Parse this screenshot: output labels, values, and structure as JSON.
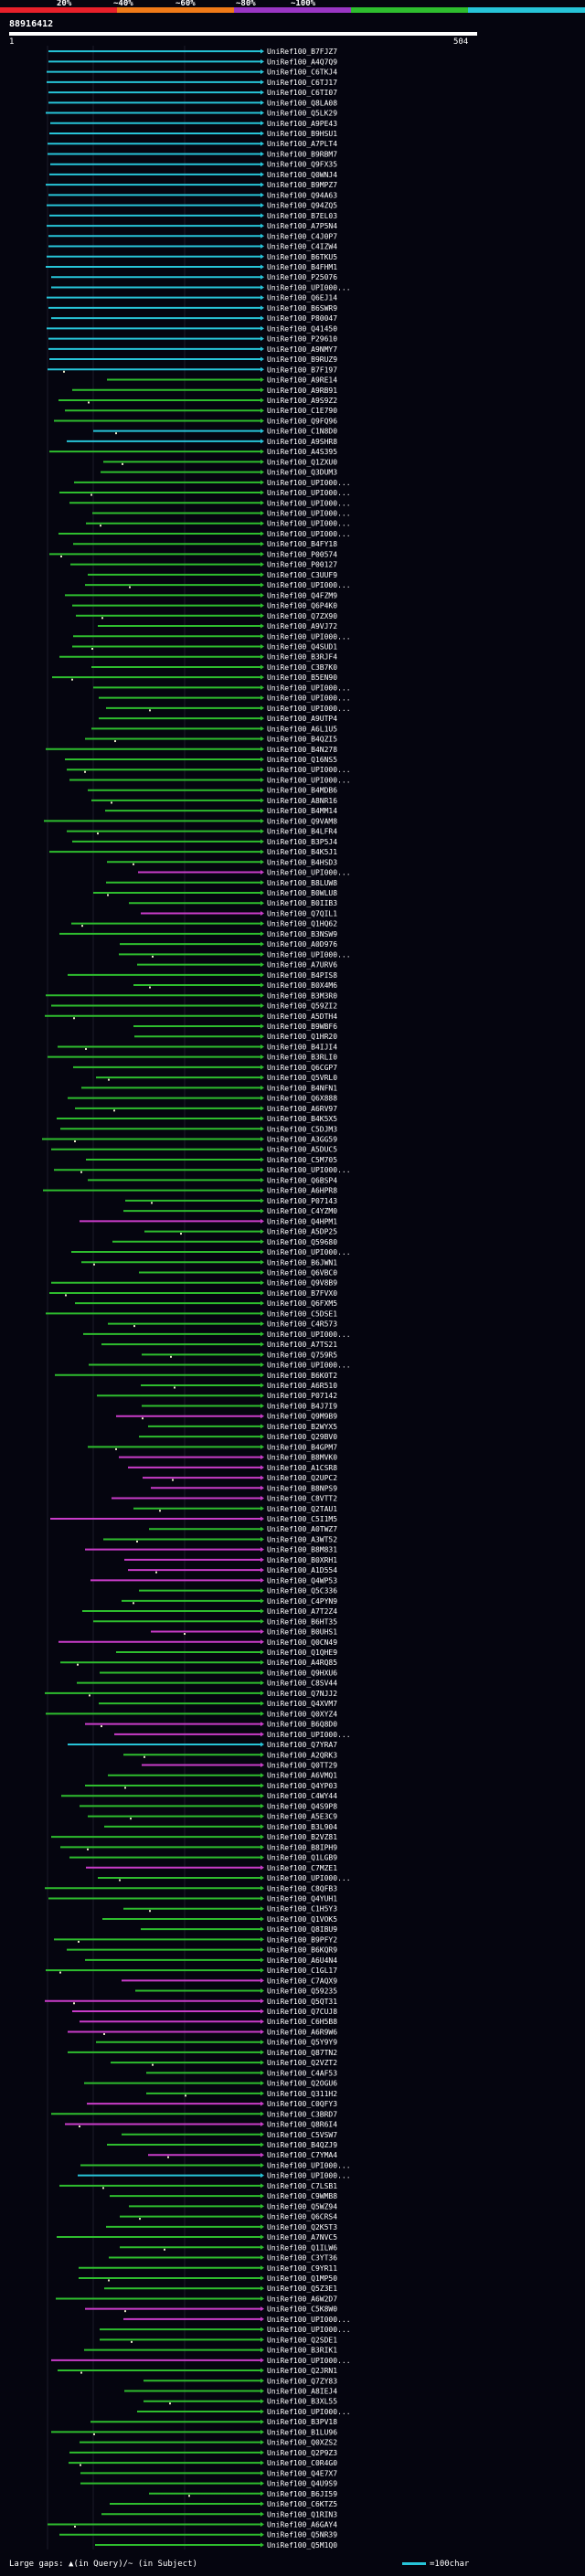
{
  "scale_labels": [
    "20%",
    "~40%",
    "~60%",
    "~80%",
    "~100%"
  ],
  "query": {
    "id": "88916412",
    "start": "1",
    "end": "504"
  },
  "colors": {
    "cyan": "#27c4d8",
    "green": "#2ebd2e",
    "magenta": "#c93cc9",
    "gap": "#e8e8c8",
    "scale": [
      "#e8202a",
      "#f07a18",
      "#9a36c4",
      "#2ebd2e",
      "#27c4d8"
    ]
  },
  "hits": [
    {
      "label": "UniRef100_B7FJZ7",
      "c": "cyan"
    },
    {
      "label": "UniRef100_A4Q7Q9",
      "c": "cyan"
    },
    {
      "label": "UniRef100_C6TKJ4",
      "c": "cyan"
    },
    {
      "label": "UniRef100_C6TJ17",
      "c": "cyan"
    },
    {
      "label": "UniRef100_C6TI07",
      "c": "cyan"
    },
    {
      "label": "UniRef100_Q8LA08",
      "c": "cyan"
    },
    {
      "label": "UniRef100_Q5LK29",
      "c": "cyan"
    },
    {
      "label": "UniRef100_A9PE43",
      "c": "cyan"
    },
    {
      "label": "UniRef100_B9HSU1",
      "c": "cyan"
    },
    {
      "label": "UniRef100_A7PLT4",
      "c": "cyan"
    },
    {
      "label": "UniRef100_B9RBM7",
      "c": "cyan"
    },
    {
      "label": "UniRef100_Q9FX35",
      "c": "cyan"
    },
    {
      "label": "UniRef100_Q0WNJ4",
      "c": "cyan"
    },
    {
      "label": "UniRef100_B9MPZ7",
      "c": "cyan"
    },
    {
      "label": "UniRef100_Q94A63",
      "c": "cyan"
    },
    {
      "label": "UniRef100_Q94ZQ5",
      "c": "cyan"
    },
    {
      "label": "UniRef100_B7EL03",
      "c": "cyan"
    },
    {
      "label": "UniRef100_A7P5N4",
      "c": "cyan"
    },
    {
      "label": "UniRef100_C4J0P7",
      "c": "cyan"
    },
    {
      "label": "UniRef100_C4IZW4",
      "c": "cyan"
    },
    {
      "label": "UniRef100_B6TKU5",
      "c": "cyan"
    },
    {
      "label": "UniRef100_B4FHM1",
      "c": "cyan"
    },
    {
      "label": "UniRef100_P25076",
      "c": "cyan"
    },
    {
      "label": "UniRef100_UPI000...",
      "c": "cyan"
    },
    {
      "label": "UniRef100_Q6EJ14",
      "c": "cyan"
    },
    {
      "label": "UniRef100_B6SWR9",
      "c": "cyan"
    },
    {
      "label": "UniRef100_P80047",
      "c": "cyan"
    },
    {
      "label": "UniRef100_Q41450",
      "c": "cyan"
    },
    {
      "label": "UniRef100_P29610",
      "c": "cyan"
    },
    {
      "label": "UniRef100_A9NMY7",
      "c": "cyan"
    },
    {
      "label": "UniRef100_B9RUZ9",
      "c": "cyan"
    },
    {
      "label": "UniRef100_B7F197",
      "c": "cyan"
    },
    {
      "label": "UniRef100_A9RE14",
      "c": "green"
    },
    {
      "label": "UniRef100_A9RB91",
      "c": "green"
    },
    {
      "label": "UniRef100_A9S9Z2",
      "c": "green"
    },
    {
      "label": "UniRef100_C1E790",
      "c": "green"
    },
    {
      "label": "UniRef100_Q9FQ96",
      "c": "green"
    },
    {
      "label": "UniRef100_C1N8D0",
      "c": "cyan"
    },
    {
      "label": "UniRef100_A9SHR8",
      "c": "cyan"
    },
    {
      "label": "UniRef100_A4S395",
      "c": "green"
    },
    {
      "label": "UniRef100_Q1ZXU0",
      "c": "green"
    },
    {
      "label": "UniRef100_Q3DUM3",
      "c": "green"
    },
    {
      "label": "UniRef100_UPI000...",
      "c": "green"
    },
    {
      "label": "UniRef100_UPI000...",
      "c": "green"
    },
    {
      "label": "UniRef100_UPI000...",
      "c": "green"
    },
    {
      "label": "UniRef100_UPI000...",
      "c": "green"
    },
    {
      "label": "UniRef100_UPI000...",
      "c": "green"
    },
    {
      "label": "UniRef100_UPI000...",
      "c": "green"
    },
    {
      "label": "UniRef100_B4FY18",
      "c": "green"
    },
    {
      "label": "UniRef100_P00574",
      "c": "green"
    },
    {
      "label": "UniRef100_P00127",
      "c": "green"
    },
    {
      "label": "UniRef100_C3UUF9",
      "c": "green"
    },
    {
      "label": "UniRef100_UPI000...",
      "c": "green"
    },
    {
      "label": "UniRef100_Q4FZM9",
      "c": "green"
    },
    {
      "label": "UniRef100_Q6P4K0",
      "c": "green"
    },
    {
      "label": "UniRef100_Q7ZX90",
      "c": "green"
    },
    {
      "label": "UniRef100_A9VJ72",
      "c": "green"
    },
    {
      "label": "UniRef100_UPI000...",
      "c": "green"
    },
    {
      "label": "UniRef100_Q4SUD1",
      "c": "green"
    },
    {
      "label": "UniRef100_B3RJF4",
      "c": "green"
    },
    {
      "label": "UniRef100_C3B7K0",
      "c": "green"
    },
    {
      "label": "UniRef100_B5EN90",
      "c": "green"
    },
    {
      "label": "UniRef100_UPI000...",
      "c": "green"
    },
    {
      "label": "UniRef100_UPI000...",
      "c": "green"
    },
    {
      "label": "UniRef100_UPI000...",
      "c": "green"
    },
    {
      "label": "UniRef100_A9UTP4",
      "c": "green"
    },
    {
      "label": "UniRef100_A6L1U5",
      "c": "green"
    },
    {
      "label": "UniRef100_B4QZI5",
      "c": "green"
    },
    {
      "label": "UniRef100_B4N278",
      "c": "green"
    },
    {
      "label": "UniRef100_Q16NS5",
      "c": "green"
    },
    {
      "label": "UniRef100_UPI000...",
      "c": "green"
    },
    {
      "label": "UniRef100_UPI000...",
      "c": "green"
    },
    {
      "label": "UniRef100_B4MDB6",
      "c": "green"
    },
    {
      "label": "UniRef100_A8NR16",
      "c": "green"
    },
    {
      "label": "UniRef100_B4MM14",
      "c": "green"
    },
    {
      "label": "UniRef100_Q9VAM8",
      "c": "green"
    },
    {
      "label": "UniRef100_B4LFR4",
      "c": "green"
    },
    {
      "label": "UniRef100_B3P5J4",
      "c": "green"
    },
    {
      "label": "UniRef100_B4K5J1",
      "c": "green"
    },
    {
      "label": "UniRef100_B4HSD3",
      "c": "green"
    },
    {
      "label": "UniRef100_UPI000...",
      "c": "magenta"
    },
    {
      "label": "UniRef100_B8LUW8",
      "c": "green"
    },
    {
      "label": "UniRef100_B0WLU8",
      "c": "green"
    },
    {
      "label": "UniRef100_B0IIB3",
      "c": "green"
    },
    {
      "label": "UniRef100_Q7QIL1",
      "c": "magenta"
    },
    {
      "label": "UniRef100_Q1HQ62",
      "c": "green"
    },
    {
      "label": "UniRef100_B3NSW9",
      "c": "green"
    },
    {
      "label": "UniRef100_A0D976",
      "c": "green"
    },
    {
      "label": "UniRef100_UPI000...",
      "c": "green"
    },
    {
      "label": "UniRef100_A7URV6",
      "c": "green"
    },
    {
      "label": "UniRef100_B4PIS8",
      "c": "green"
    },
    {
      "label": "UniRef100_B0X4M6",
      "c": "green"
    },
    {
      "label": "UniRef100_B3M3R0",
      "c": "green"
    },
    {
      "label": "UniRef100_Q59ZI2",
      "c": "green"
    },
    {
      "label": "UniRef100_A5DTH4",
      "c": "green"
    },
    {
      "label": "UniRef100_B9WBF6",
      "c": "green"
    },
    {
      "label": "UniRef100_Q1HR20",
      "c": "green"
    },
    {
      "label": "UniRef100_B4IJI4",
      "c": "green"
    },
    {
      "label": "UniRef100_B3RLI0",
      "c": "green"
    },
    {
      "label": "UniRef100_Q6CGP7",
      "c": "green"
    },
    {
      "label": "UniRef100_Q5VRL0",
      "c": "green"
    },
    {
      "label": "UniRef100_B4NFN1",
      "c": "green"
    },
    {
      "label": "UniRef100_Q6X888",
      "c": "green"
    },
    {
      "label": "UniRef100_A6RV97",
      "c": "green"
    },
    {
      "label": "UniRef100_B4K5X5",
      "c": "green"
    },
    {
      "label": "UniRef100_C5DJM3",
      "c": "green"
    },
    {
      "label": "UniRef100_A3GG59",
      "c": "green"
    },
    {
      "label": "UniRef100_A5DUC5",
      "c": "green"
    },
    {
      "label": "UniRef100_C5M705",
      "c": "green"
    },
    {
      "label": "UniRef100_UPI000...",
      "c": "green"
    },
    {
      "label": "UniRef100_Q6BSP4",
      "c": "green"
    },
    {
      "label": "UniRef100_A6HPR8",
      "c": "green"
    },
    {
      "label": "UniRef100_P07143",
      "c": "green"
    },
    {
      "label": "UniRef100_C4YZM0",
      "c": "green"
    },
    {
      "label": "UniRef100_Q4HPM1",
      "c": "magenta"
    },
    {
      "label": "UniRef100_A5DP25",
      "c": "green"
    },
    {
      "label": "UniRef100_Q59680",
      "c": "green"
    },
    {
      "label": "UniRef100_UPI000...",
      "c": "green"
    },
    {
      "label": "UniRef100_B6JWN1",
      "c": "green"
    },
    {
      "label": "UniRef100_Q6VBC0",
      "c": "green"
    },
    {
      "label": "UniRef100_Q9V8B9",
      "c": "green"
    },
    {
      "label": "UniRef100_B7FVX0",
      "c": "green"
    },
    {
      "label": "UniRef100_Q6FXM5",
      "c": "green"
    },
    {
      "label": "UniRef100_C5DSE1",
      "c": "green"
    },
    {
      "label": "UniRef100_C4R573",
      "c": "green"
    },
    {
      "label": "UniRef100_UPI000...",
      "c": "green"
    },
    {
      "label": "UniRef100_A7TS21",
      "c": "green"
    },
    {
      "label": "UniRef100_Q759R5",
      "c": "green"
    },
    {
      "label": "UniRef100_UPI000...",
      "c": "green"
    },
    {
      "label": "UniRef100_B6K0T2",
      "c": "green"
    },
    {
      "label": "UniRef100_A6R510",
      "c": "green"
    },
    {
      "label": "UniRef100_P07142",
      "c": "green"
    },
    {
      "label": "UniRef100_B4J7I9",
      "c": "green"
    },
    {
      "label": "UniRef100_Q9M9B9",
      "c": "magenta"
    },
    {
      "label": "UniRef100_B2WYX5",
      "c": "green"
    },
    {
      "label": "UniRef100_Q29BV0",
      "c": "green"
    },
    {
      "label": "UniRef100_B4GPM7",
      "c": "green"
    },
    {
      "label": "UniRef100_B8MVK0",
      "c": "magenta"
    },
    {
      "label": "UniRef100_A1CSR8",
      "c": "magenta"
    },
    {
      "label": "UniRef100_Q2UPC2",
      "c": "magenta"
    },
    {
      "label": "UniRef100_B8NPS9",
      "c": "magenta"
    },
    {
      "label": "UniRef100_C8VTT2",
      "c": "magenta"
    },
    {
      "label": "UniRef100_Q2TAU1",
      "c": "green"
    },
    {
      "label": "UniRef100_C5I1M5",
      "c": "magenta"
    },
    {
      "label": "UniRef100_A0TWZ7",
      "c": "green"
    },
    {
      "label": "UniRef100_A3WT52",
      "c": "green"
    },
    {
      "label": "UniRef100_B8M831",
      "c": "magenta"
    },
    {
      "label": "UniRef100_B0XRH1",
      "c": "magenta"
    },
    {
      "label": "UniRef100_A1D554",
      "c": "magenta"
    },
    {
      "label": "UniRef100_Q4WP53",
      "c": "magenta"
    },
    {
      "label": "UniRef100_Q5C336",
      "c": "green"
    },
    {
      "label": "UniRef100_C4PYN9",
      "c": "green"
    },
    {
      "label": "UniRef100_A7T2Z4",
      "c": "green"
    },
    {
      "label": "UniRef100_B6HT35",
      "c": "green"
    },
    {
      "label": "UniRef100_B0UHS1",
      "c": "magenta"
    },
    {
      "label": "UniRef100_Q0CN49",
      "c": "magenta"
    },
    {
      "label": "UniRef100_Q1QHE9",
      "c": "green"
    },
    {
      "label": "UniRef100_A4RQ85",
      "c": "green"
    },
    {
      "label": "UniRef100_Q9HXU6",
      "c": "green"
    },
    {
      "label": "UniRef100_C8SV44",
      "c": "green"
    },
    {
      "label": "UniRef100_Q7NJJ2",
      "c": "green"
    },
    {
      "label": "UniRef100_Q4XVM7",
      "c": "green"
    },
    {
      "label": "UniRef100_Q0XYZ4",
      "c": "green"
    },
    {
      "label": "UniRef100_B6Q8D0",
      "c": "magenta"
    },
    {
      "label": "UniRef100_UPI000...",
      "c": "magenta"
    },
    {
      "label": "UniRef100_Q7YRA7",
      "c": "cyan"
    },
    {
      "label": "UniRef100_A2QRK3",
      "c": "green"
    },
    {
      "label": "UniRef100_Q0TT29",
      "c": "magenta"
    },
    {
      "label": "UniRef100_A6VMQ1",
      "c": "green"
    },
    {
      "label": "UniRef100_Q4YP03",
      "c": "green"
    },
    {
      "label": "UniRef100_C4WY44",
      "c": "green"
    },
    {
      "label": "UniRef100_Q4S9P8",
      "c": "green"
    },
    {
      "label": "UniRef100_A5E3C9",
      "c": "green"
    },
    {
      "label": "UniRef100_B3L904",
      "c": "green"
    },
    {
      "label": "UniRef100_B2VZ81",
      "c": "green"
    },
    {
      "label": "UniRef100_B8IPH9",
      "c": "green"
    },
    {
      "label": "UniRef100_Q1LGB9",
      "c": "green"
    },
    {
      "label": "UniRef100_C7MZE1",
      "c": "magenta"
    },
    {
      "label": "UniRef100_UPI000...",
      "c": "green"
    },
    {
      "label": "UniRef100_C8QFB3",
      "c": "green"
    },
    {
      "label": "UniRef100_Q4YUH1",
      "c": "green"
    },
    {
      "label": "UniRef100_C1H5Y3",
      "c": "green"
    },
    {
      "label": "UniRef100_Q1VOK5",
      "c": "green"
    },
    {
      "label": "UniRef100_Q8IBU9",
      "c": "green"
    },
    {
      "label": "UniRef100_B9PFY2",
      "c": "green"
    },
    {
      "label": "UniRef100_B6KQR9",
      "c": "green"
    },
    {
      "label": "UniRef100_A6U4N4",
      "c": "green"
    },
    {
      "label": "UniRef100_C1GL17",
      "c": "green"
    },
    {
      "label": "UniRef100_C7AQX9",
      "c": "magenta"
    },
    {
      "label": "UniRef100_Q59235",
      "c": "green"
    },
    {
      "label": "UniRef100_Q5QT31",
      "c": "magenta"
    },
    {
      "label": "UniRef100_Q7CUJ8",
      "c": "magenta"
    },
    {
      "label": "UniRef100_C6H5B8",
      "c": "magenta"
    },
    {
      "label": "UniRef100_A6R9W6",
      "c": "magenta"
    },
    {
      "label": "UniRef100_Q5Y9Y9",
      "c": "green"
    },
    {
      "label": "UniRef100_Q87TN2",
      "c": "green"
    },
    {
      "label": "UniRef100_Q2VZT2",
      "c": "green"
    },
    {
      "label": "UniRef100_C4AF53",
      "c": "green"
    },
    {
      "label": "UniRef100_Q2OGU6",
      "c": "green"
    },
    {
      "label": "UniRef100_Q311H2",
      "c": "green"
    },
    {
      "label": "UniRef100_C0QFY3",
      "c": "magenta"
    },
    {
      "label": "UniRef100_C3BRD7",
      "c": "green"
    },
    {
      "label": "UniRef100_Q8R6I4",
      "c": "magenta"
    },
    {
      "label": "UniRef100_C5VSW7",
      "c": "green"
    },
    {
      "label": "UniRef100_B4QZJ9",
      "c": "green"
    },
    {
      "label": "UniRef100_C7YMA4",
      "c": "magenta"
    },
    {
      "label": "UniRef100_UPI000...",
      "c": "green"
    },
    {
      "label": "UniRef100_UPI000...",
      "c": "cyan"
    },
    {
      "label": "UniRef100_C7LSB1",
      "c": "green"
    },
    {
      "label": "UniRef100_C9WMB8",
      "c": "green"
    },
    {
      "label": "UniRef100_Q5WZ94",
      "c": "green"
    },
    {
      "label": "UniRef100_Q6CRS4",
      "c": "green"
    },
    {
      "label": "UniRef100_Q2K5T3",
      "c": "green"
    },
    {
      "label": "UniRef100_A7NVC5",
      "c": "green"
    },
    {
      "label": "UniRef100_Q1ILW6",
      "c": "green"
    },
    {
      "label": "UniRef100_C3YT36",
      "c": "green"
    },
    {
      "label": "UniRef100_C9YR11",
      "c": "green"
    },
    {
      "label": "UniRef100_Q1MP50",
      "c": "green"
    },
    {
      "label": "UniRef100_Q5Z3E1",
      "c": "green"
    },
    {
      "label": "UniRef100_A6W2D7",
      "c": "green"
    },
    {
      "label": "UniRef100_C5K8W0",
      "c": "magenta"
    },
    {
      "label": "UniRef100_UPI000...",
      "c": "magenta"
    },
    {
      "label": "UniRef100_UPI000...",
      "c": "green"
    },
    {
      "label": "UniRef100_Q2SDE1",
      "c": "green"
    },
    {
      "label": "UniRef100_B3RIK1",
      "c": "green"
    },
    {
      "label": "UniRef100_UPI000...",
      "c": "magenta"
    },
    {
      "label": "UniRef100_Q2JRN1",
      "c": "green"
    },
    {
      "label": "UniRef100_Q7ZY83",
      "c": "green"
    },
    {
      "label": "UniRef100_A8IEJ4",
      "c": "green"
    },
    {
      "label": "UniRef100_B3XL55",
      "c": "green"
    },
    {
      "label": "UniRef100_UPI000...",
      "c": "green"
    },
    {
      "label": "UniRef100_B3PV18",
      "c": "green"
    },
    {
      "label": "UniRef100_B1LU96",
      "c": "green"
    },
    {
      "label": "UniRef100_Q0XZS2",
      "c": "green"
    },
    {
      "label": "UniRef100_Q2P9Z3",
      "c": "green"
    },
    {
      "label": "UniRef100_C0R4G0",
      "c": "green"
    },
    {
      "label": "UniRef100_Q4E7X7",
      "c": "green"
    },
    {
      "label": "UniRef100_Q4U9S9",
      "c": "green"
    },
    {
      "label": "UniRef100_B6JI59",
      "c": "green"
    },
    {
      "label": "UniRef100_C6KTZ5",
      "c": "green"
    },
    {
      "label": "UniRef100_Q1RIN3",
      "c": "green"
    },
    {
      "label": "UniRef100_A6GAY4",
      "c": "green"
    },
    {
      "label": "UniRef100_Q5NR39",
      "c": "green"
    },
    {
      "label": "UniRef100_Q5M1Q0",
      "c": "green"
    }
  ],
  "footer": {
    "large_gaps": "Large gaps: ▲(in Query)/~ (in Subject)",
    "legend_text": "=100char"
  }
}
